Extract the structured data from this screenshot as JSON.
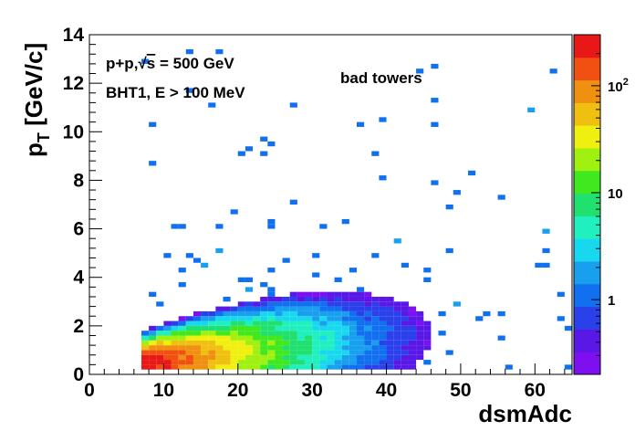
{
  "chart_data": {
    "type": "heatmap",
    "xlabel": "dsmAdc",
    "ylabel_main": "p",
    "ylabel_sub": "T",
    "ylabel_unit": " [GeV/c]",
    "xlim": [
      0,
      65
    ],
    "ylim": [
      0,
      14
    ],
    "x_ticks": [
      0,
      10,
      20,
      30,
      40,
      50,
      60
    ],
    "y_ticks": [
      0,
      2,
      4,
      6,
      8,
      10,
      12,
      14
    ],
    "grid": false,
    "log_z": true,
    "zlim": [
      0.2,
      300
    ],
    "colorbar_ticks": [
      {
        "value": 1,
        "label": "1"
      },
      {
        "value": 10,
        "label": "10"
      },
      {
        "value": 100,
        "label": "10",
        "sup": "2"
      }
    ],
    "annotations": {
      "line1_prefix": "p+p,",
      "sqrt_symbol": "√",
      "line1_var": "s",
      "line1_rest": " = 500 GeV",
      "line2": "BHT1, E > 100 MeV",
      "line3": "bad towers"
    },
    "density_model": {
      "description_of_shape": "dense band near low pT starting at dsmAdc ~ 7, sparse scatter up to pT 14",
      "core": [
        {
          "x": 10,
          "y": 0.6,
          "value": 300
        },
        {
          "x": 13,
          "y": 0.6,
          "value": 200
        },
        {
          "x": 16,
          "y": 0.7,
          "value": 120
        },
        {
          "x": 20,
          "y": 0.8,
          "value": 50
        },
        {
          "x": 25,
          "y": 1.0,
          "value": 15
        },
        {
          "x": 30,
          "y": 1.2,
          "value": 6
        }
      ]
    },
    "palette": [
      "#7e0ff0",
      "#5a18e6",
      "#2a40ea",
      "#1070f0",
      "#18a0ef",
      "#18d8f0",
      "#20f0c0",
      "#20e070",
      "#40e820",
      "#a0f010",
      "#f0f010",
      "#f0c010",
      "#f09010",
      "#f05010",
      "#e81818"
    ]
  }
}
